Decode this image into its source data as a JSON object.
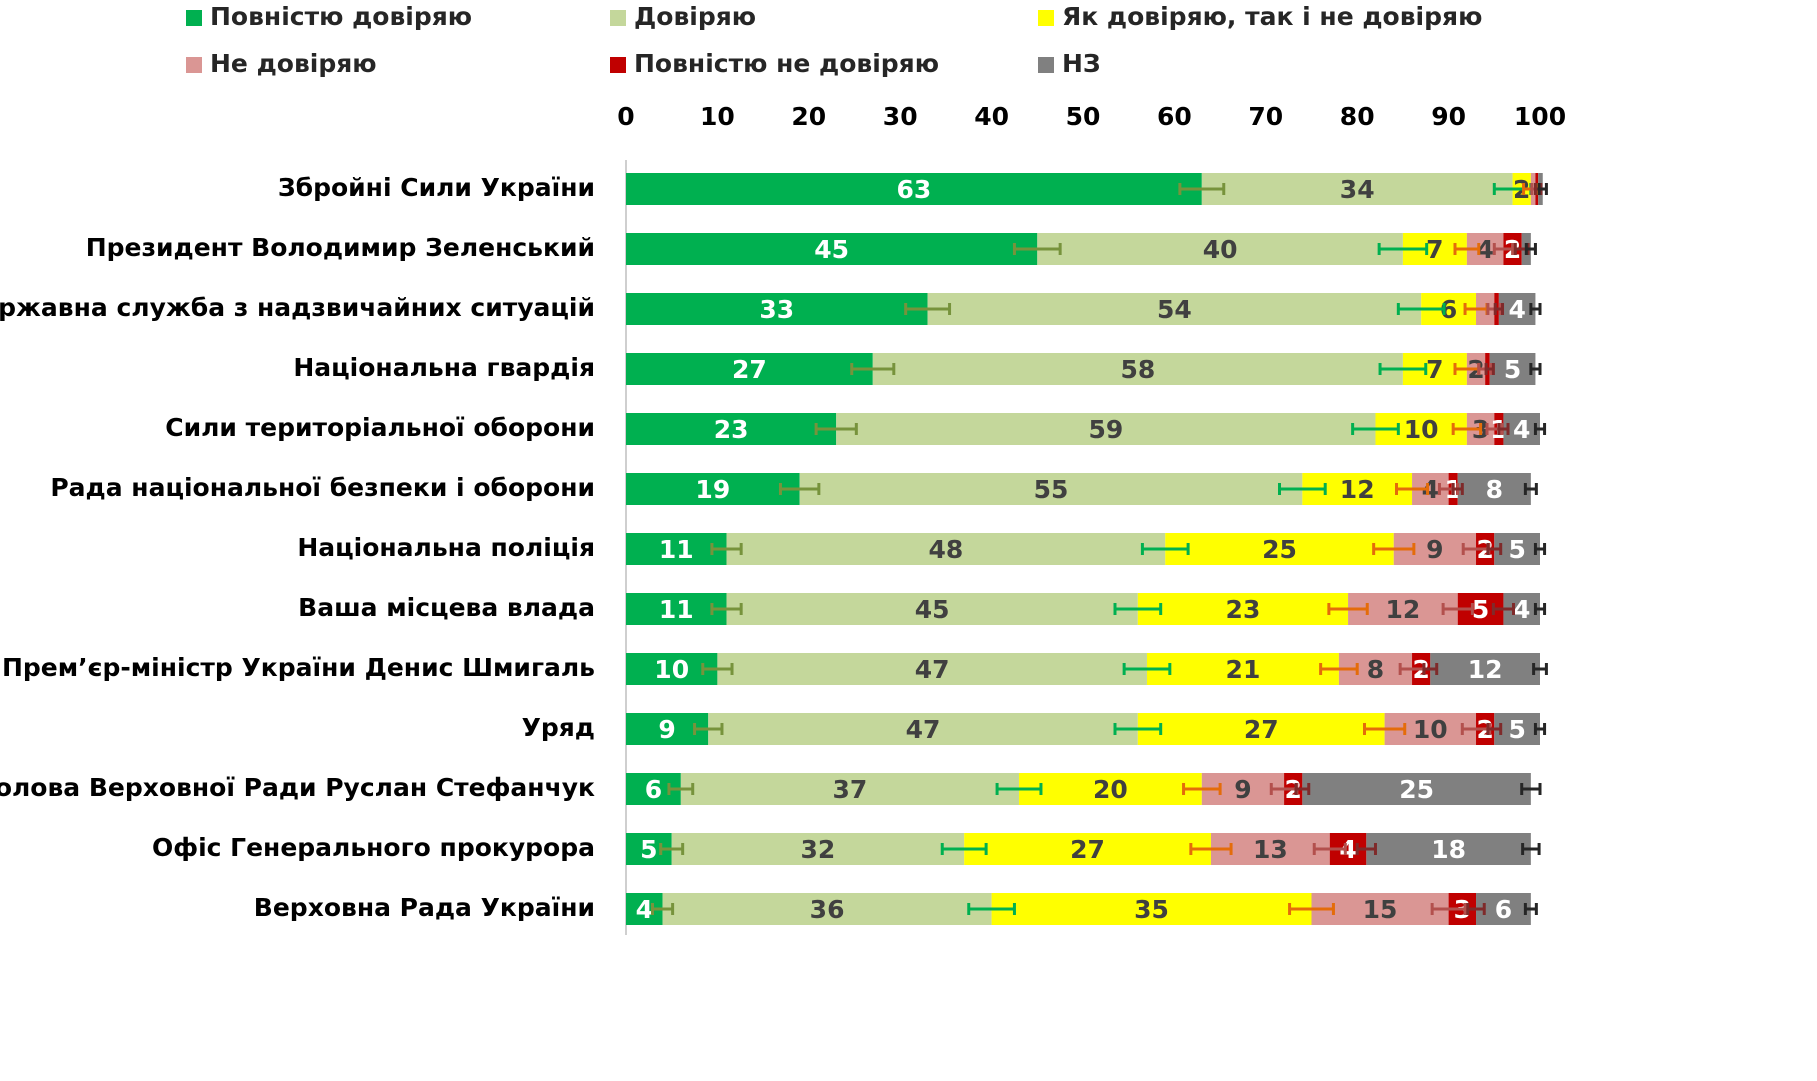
{
  "chart_data": {
    "type": "stacked_barh",
    "categories": [
      "Збройні Сили України",
      "Президент Володимир Зеленський",
      "Державна служба з надзвичайних ситуацій",
      "Національна гвардія",
      "Сили територіальної оборони",
      "Рада національної безпеки і оборони ",
      "Національна поліція",
      "Ваша місцева влада",
      "Прем’єр-міністр України Денис Шмигаль",
      "Уряд",
      "Голова Верховної Ради Руслан Стефанчук",
      "Офіс Генерального прокурора",
      "Верховна Рада України"
    ],
    "series": [
      {
        "name": "Повністю довіряю",
        "color": "#00b050",
        "label_color": "#ffffff",
        "error_color": "#77933c",
        "values": [
          63,
          45,
          33,
          27,
          23,
          19,
          11,
          11,
          10,
          9,
          6,
          5,
          4
        ],
        "value_labels": [
          "63",
          "45",
          "33",
          "27",
          "23",
          "19",
          "11",
          "11",
          "10",
          "9",
          "6",
          "5",
          "4"
        ],
        "errors": [
          2.4,
          2.5,
          2.4,
          2.3,
          2.2,
          2.1,
          1.6,
          1.6,
          1.6,
          1.5,
          1.3,
          1.2,
          1.1
        ]
      },
      {
        "name": "Довіряю",
        "color": "#c4d79b",
        "label_color": "#404040",
        "error_color": "#00b050",
        "values": [
          34,
          40,
          54,
          58,
          59,
          55,
          48,
          45,
          47,
          47,
          37,
          32,
          36
        ],
        "value_labels": [
          "34",
          "40",
          "54",
          "58",
          "59",
          "55",
          "48",
          "45",
          "47",
          "47",
          "37",
          "32",
          "36"
        ],
        "errors": [
          2.0,
          2.6,
          2.5,
          2.5,
          2.5,
          2.5,
          2.5,
          2.5,
          2.5,
          2.5,
          2.4,
          2.4,
          2.5
        ]
      },
      {
        "name": "Як довіряю, так і не довіряю",
        "color": "#ffff00",
        "label_color": "#404040",
        "error_color": "#e46c0a",
        "values": [
          2,
          7,
          6,
          7,
          10,
          12,
          25,
          23,
          21,
          27,
          20,
          27,
          35
        ],
        "value_labels": [
          "2",
          "7",
          "6",
          "7",
          "10",
          "12",
          "25",
          "23",
          "21",
          "27",
          "20",
          "27",
          "35"
        ],
        "errors": [
          0.8,
          1.3,
          1.2,
          1.3,
          1.5,
          1.7,
          2.2,
          2.1,
          2.0,
          2.2,
          2.0,
          2.2,
          2.4
        ]
      },
      {
        "name": "Не довіряю",
        "color": "#da9694",
        "label_color": "#404040",
        "error_color": "#b3504d",
        "values": [
          0.5,
          4,
          2,
          2,
          3,
          4,
          9,
          12,
          8,
          10,
          9,
          13,
          15
        ],
        "value_labels": [
          null,
          "4",
          null,
          "2",
          "3",
          "4",
          "9",
          "12",
          "8",
          "10",
          "9",
          "13",
          "15"
        ],
        "errors": [
          0.4,
          1.0,
          0.7,
          0.7,
          0.8,
          1.0,
          1.4,
          1.6,
          1.3,
          1.5,
          1.4,
          1.7,
          1.8
        ]
      },
      {
        "name": "Повністю не довіряю",
        "color": "#c00000",
        "label_color": "#ffffff",
        "error_color": "#7f2a2a",
        "values": [
          0.3,
          2,
          0.5,
          0.5,
          1,
          1,
          2,
          5,
          2,
          2,
          2,
          4,
          3
        ],
        "value_labels": [
          null,
          "2",
          null,
          null,
          "1",
          "1",
          "2",
          "5",
          "2",
          "2",
          "2",
          "4",
          "3"
        ],
        "errors": [
          0.3,
          0.7,
          0.4,
          0.4,
          0.5,
          0.5,
          0.7,
          1.1,
          0.7,
          0.7,
          0.7,
          1.0,
          0.9
        ]
      },
      {
        "name": "НЗ",
        "color": "#808080",
        "label_color": "#ffffff",
        "error_color": "#262626",
        "values": [
          0.5,
          1,
          4,
          5,
          4,
          8,
          5,
          4,
          12,
          5,
          25,
          18,
          6
        ],
        "value_labels": [
          null,
          null,
          "4",
          "5",
          "4",
          "8",
          "5",
          "4",
          "12",
          "5",
          "25",
          "18",
          "6"
        ],
        "errors": [
          0.4,
          0.5,
          0.5,
          0.5,
          0.5,
          0.6,
          0.5,
          0.5,
          0.7,
          0.5,
          1.0,
          0.9,
          0.6
        ]
      }
    ],
    "xlim": [
      0,
      100
    ],
    "xticks": [
      0,
      10,
      20,
      30,
      40,
      50,
      60,
      70,
      80,
      90,
      100
    ]
  }
}
